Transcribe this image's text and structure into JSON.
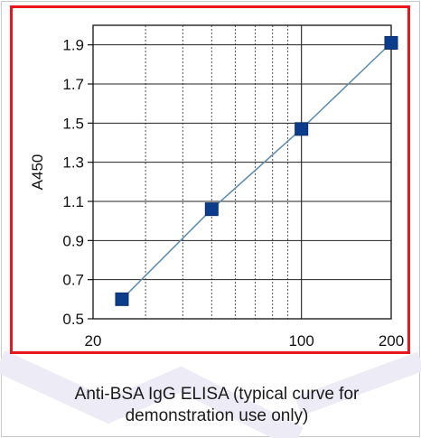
{
  "chart_data": {
    "type": "scatter",
    "x_scale": "log",
    "xlim": [
      20,
      200
    ],
    "ylim": [
      0.5,
      2.0
    ],
    "x_ticks": [
      20,
      100,
      200
    ],
    "x_tick_labels": [
      "20",
      "100",
      "200"
    ],
    "y_ticks": [
      0.5,
      0.7,
      0.9,
      1.1,
      1.3,
      1.5,
      1.7,
      1.9
    ],
    "y_tick_labels": [
      "0.5",
      "0.7",
      "0.9",
      "1.1",
      "1.3",
      "1.5",
      "1.7",
      "1.9"
    ],
    "ylabel": "A450",
    "xlabel": "",
    "title": "",
    "grid": true,
    "fit_line": true,
    "marker_color": "#0c3d8c",
    "line_color": "#5b8cb0",
    "series": [
      {
        "x": [
          25,
          50,
          100,
          200
        ],
        "y": [
          0.6,
          1.06,
          1.47,
          1.91
        ]
      }
    ]
  },
  "caption": {
    "line1": "Anti-BSA IgG ELISA (typical curve for",
    "line2": "demonstration use only)"
  },
  "colors": {
    "frame_border": "#e8171b"
  }
}
